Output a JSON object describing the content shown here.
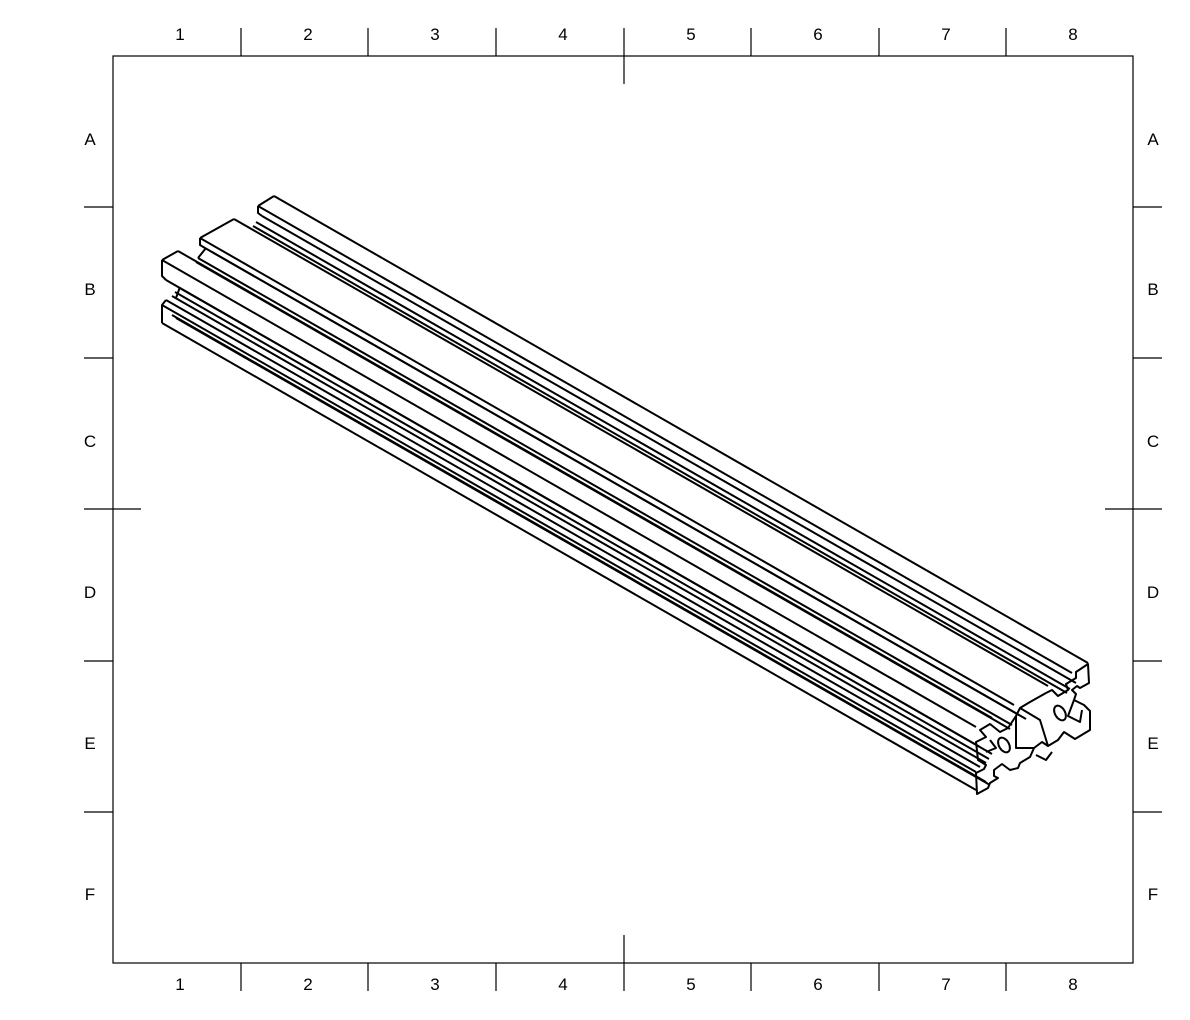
{
  "frame": {
    "column_labels": [
      "1",
      "2",
      "3",
      "4",
      "5",
      "6",
      "7",
      "8"
    ],
    "row_labels": [
      "A",
      "B",
      "C",
      "D",
      "E",
      "F"
    ]
  },
  "drawing": {
    "subject": "aluminum-extrusion-profile-isometric",
    "line_color": "#000000",
    "background": "#ffffff"
  }
}
